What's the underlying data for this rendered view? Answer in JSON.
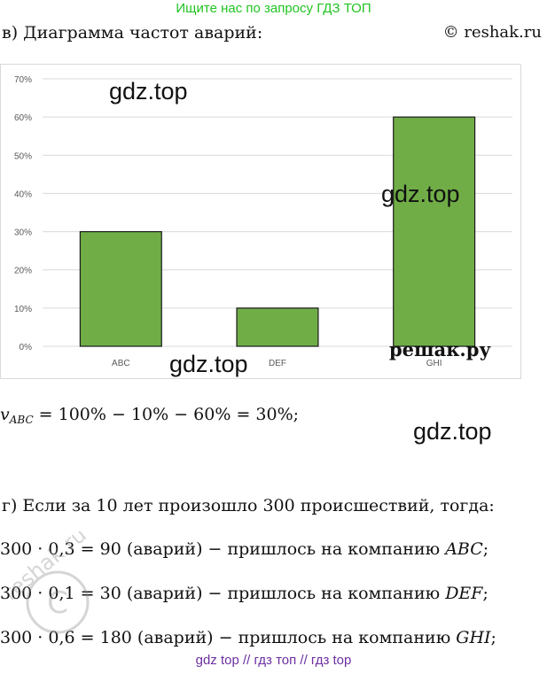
{
  "banner": "Ищите нас по запросу ГДЗ ТОП",
  "heading": "в) Диаграмма частот аварий:",
  "copyright": "© reshak.ru",
  "watermarks": {
    "gdz_1": "gdz.top",
    "gdz_2": "gdz.top",
    "gdz_3": "gdz.top",
    "gdz_4": "gdz.top",
    "reshak_ru": "решак.ру"
  },
  "chart_data": {
    "type": "bar",
    "categories": [
      "ABC",
      "DEF",
      "GHI"
    ],
    "values": [
      30,
      10,
      60
    ],
    "yticks": [
      "0%",
      "10%",
      "20%",
      "30%",
      "40%",
      "50%",
      "60%",
      "70%"
    ],
    "ylim": [
      0,
      70
    ],
    "grid": true,
    "bar_color": "#70ad47",
    "bar_edge_color": "#1a1a1a",
    "grid_color": "#d9d9d9"
  },
  "formula": {
    "var": "v",
    "sub": "ABC",
    "rhs": " = 100% − 10% − 60% = 30%;"
  },
  "part_g": {
    "intro": "г) Если за 10 лет произошло 300 происшествий, тогда:",
    "lines": [
      {
        "expr": "300 · 0,3 = 90 (аварий) − пришлось на компанию ",
        "company": "ABC",
        "end": ";"
      },
      {
        "expr": "300 · 0,1 = 30 (аварий) − пришлось на компанию ",
        "company": "DEF",
        "end": ";"
      },
      {
        "expr": "300 · 0,6 = 180 (аварий) − пришлось на компанию ",
        "company": "GHI",
        "end": ";"
      }
    ]
  },
  "footer": "gdz top  //  гдз топ  //  гдз top",
  "stamp_text": "reshak.ru"
}
